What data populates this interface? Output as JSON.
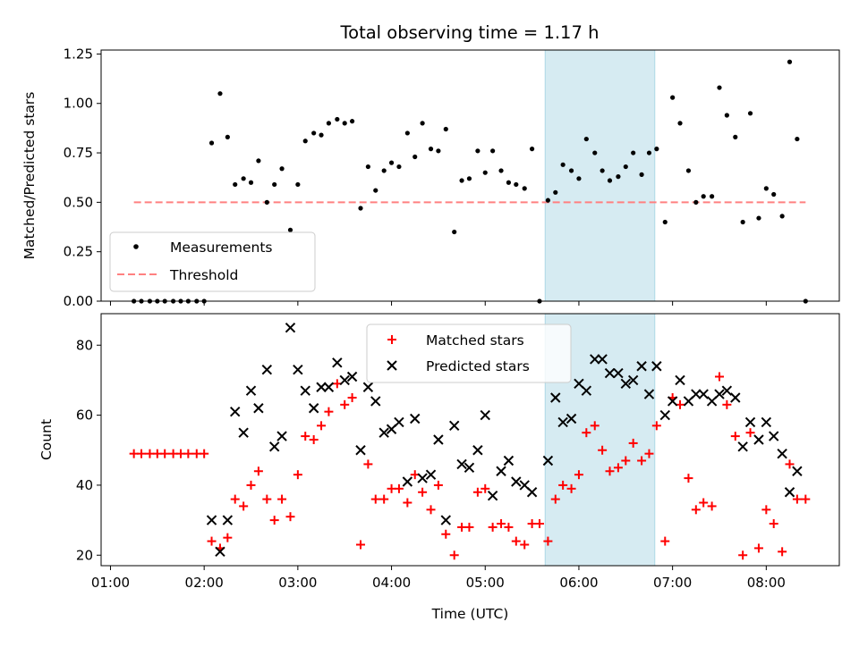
{
  "chart_data": [
    {
      "type": "scatter",
      "title": "Total observing time = 1.17 h",
      "ylabel": "Matched/Predicted stars",
      "xlim": [
        0.9,
        8.78
      ],
      "ylim": [
        0,
        1.27
      ],
      "yticks": [
        "0.00",
        "0.25",
        "0.50",
        "0.75",
        "1.00",
        "1.25"
      ],
      "highlight_span": [
        5.64,
        6.81
      ],
      "highlight_color": "#add8e6",
      "series": [
        {
          "name": "Measurements",
          "color": "#000000",
          "marker": "dot",
          "points": [
            [
              1.25,
              0
            ],
            [
              1.33,
              0
            ],
            [
              1.42,
              0
            ],
            [
              1.5,
              0
            ],
            [
              1.58,
              0
            ],
            [
              1.67,
              0
            ],
            [
              1.75,
              0
            ],
            [
              1.83,
              0
            ],
            [
              1.92,
              0
            ],
            [
              2.0,
              0
            ],
            [
              2.08,
              0.8
            ],
            [
              2.17,
              1.05
            ],
            [
              2.25,
              0.83
            ],
            [
              2.33,
              0.59
            ],
            [
              2.42,
              0.62
            ],
            [
              2.5,
              0.6
            ],
            [
              2.58,
              0.71
            ],
            [
              2.67,
              0.5
            ],
            [
              2.75,
              0.59
            ],
            [
              2.83,
              0.67
            ],
            [
              2.92,
              0.36
            ],
            [
              3.0,
              0.59
            ],
            [
              3.08,
              0.81
            ],
            [
              3.17,
              0.85
            ],
            [
              3.25,
              0.84
            ],
            [
              3.33,
              0.9
            ],
            [
              3.42,
              0.92
            ],
            [
              3.5,
              0.9
            ],
            [
              3.58,
              0.91
            ],
            [
              3.67,
              0.47
            ],
            [
              3.75,
              0.68
            ],
            [
              3.83,
              0.56
            ],
            [
              3.92,
              0.66
            ],
            [
              4.0,
              0.7
            ],
            [
              4.08,
              0.68
            ],
            [
              4.17,
              0.85
            ],
            [
              4.25,
              0.73
            ],
            [
              4.33,
              0.9
            ],
            [
              4.42,
              0.77
            ],
            [
              4.5,
              0.76
            ],
            [
              4.58,
              0.87
            ],
            [
              4.67,
              0.35
            ],
            [
              4.75,
              0.61
            ],
            [
              4.83,
              0.62
            ],
            [
              4.92,
              0.76
            ],
            [
              5.0,
              0.65
            ],
            [
              5.08,
              0.76
            ],
            [
              5.17,
              0.66
            ],
            [
              5.25,
              0.6
            ],
            [
              5.33,
              0.59
            ],
            [
              5.42,
              0.57
            ],
            [
              5.5,
              0.77
            ],
            [
              5.58,
              0.0
            ],
            [
              5.67,
              0.51
            ],
            [
              5.75,
              0.55
            ],
            [
              5.83,
              0.69
            ],
            [
              5.92,
              0.66
            ],
            [
              6.0,
              0.62
            ],
            [
              6.08,
              0.82
            ],
            [
              6.17,
              0.75
            ],
            [
              6.25,
              0.66
            ],
            [
              6.33,
              0.61
            ],
            [
              6.42,
              0.63
            ],
            [
              6.5,
              0.68
            ],
            [
              6.58,
              0.75
            ],
            [
              6.67,
              0.64
            ],
            [
              6.75,
              0.75
            ],
            [
              6.83,
              0.77
            ],
            [
              6.92,
              0.4
            ],
            [
              7.0,
              1.03
            ],
            [
              7.08,
              0.9
            ],
            [
              7.17,
              0.66
            ],
            [
              7.25,
              0.5
            ],
            [
              7.33,
              0.53
            ],
            [
              7.42,
              0.53
            ],
            [
              7.5,
              1.08
            ],
            [
              7.58,
              0.94
            ],
            [
              7.67,
              0.83
            ],
            [
              7.75,
              0.4
            ],
            [
              7.83,
              0.95
            ],
            [
              7.92,
              0.42
            ],
            [
              8.0,
              0.57
            ],
            [
              8.08,
              0.54
            ],
            [
              8.17,
              0.43
            ],
            [
              8.25,
              1.21
            ],
            [
              8.33,
              0.82
            ],
            [
              8.42,
              0.0
            ]
          ]
        },
        {
          "name": "Threshold",
          "color": "#ff8080",
          "style": "dashed",
          "points": [
            [
              1.25,
              0.5
            ],
            [
              8.42,
              0.5
            ]
          ]
        }
      ],
      "legend": "lower-left"
    },
    {
      "type": "scatter",
      "xlabel": "Time (UTC)",
      "ylabel": "Count",
      "xlim": [
        0.9,
        8.78
      ],
      "ylim": [
        17,
        89
      ],
      "xticks": [
        "01:00",
        "02:00",
        "03:00",
        "04:00",
        "05:00",
        "06:00",
        "07:00",
        "08:00"
      ],
      "yticks": [
        "20",
        "40",
        "60",
        "80"
      ],
      "highlight_span": [
        5.64,
        6.81
      ],
      "highlight_color": "#add8e6",
      "series": [
        {
          "name": "Matched stars",
          "color": "#ff0000",
          "marker": "plus",
          "points": [
            [
              1.25,
              49
            ],
            [
              1.33,
              49
            ],
            [
              1.42,
              49
            ],
            [
              1.5,
              49
            ],
            [
              1.58,
              49
            ],
            [
              1.67,
              49
            ],
            [
              1.75,
              49
            ],
            [
              1.83,
              49
            ],
            [
              1.92,
              49
            ],
            [
              2.0,
              49
            ],
            [
              2.08,
              24
            ],
            [
              2.17,
              22
            ],
            [
              2.25,
              25
            ],
            [
              2.33,
              36
            ],
            [
              2.42,
              34
            ],
            [
              2.5,
              40
            ],
            [
              2.58,
              44
            ],
            [
              2.67,
              36
            ],
            [
              2.75,
              30
            ],
            [
              2.83,
              36
            ],
            [
              2.92,
              31
            ],
            [
              3.0,
              43
            ],
            [
              3.08,
              54
            ],
            [
              3.17,
              53
            ],
            [
              3.25,
              57
            ],
            [
              3.33,
              61
            ],
            [
              3.42,
              69
            ],
            [
              3.5,
              63
            ],
            [
              3.58,
              65
            ],
            [
              3.67,
              23
            ],
            [
              3.75,
              46
            ],
            [
              3.83,
              36
            ],
            [
              3.92,
              36
            ],
            [
              4.0,
              39
            ],
            [
              4.08,
              39
            ],
            [
              4.17,
              35
            ],
            [
              4.25,
              43
            ],
            [
              4.33,
              38
            ],
            [
              4.42,
              33
            ],
            [
              4.5,
              40
            ],
            [
              4.58,
              26
            ],
            [
              4.67,
              20
            ],
            [
              4.75,
              28
            ],
            [
              4.83,
              28
            ],
            [
              4.92,
              38
            ],
            [
              5.0,
              39
            ],
            [
              5.08,
              28
            ],
            [
              5.17,
              29
            ],
            [
              5.25,
              28
            ],
            [
              5.33,
              24
            ],
            [
              5.42,
              23
            ],
            [
              5.5,
              29
            ],
            [
              5.58,
              29
            ],
            [
              5.67,
              24
            ],
            [
              5.75,
              36
            ],
            [
              5.83,
              40
            ],
            [
              5.92,
              39
            ],
            [
              6.0,
              43
            ],
            [
              6.08,
              55
            ],
            [
              6.17,
              57
            ],
            [
              6.25,
              50
            ],
            [
              6.33,
              44
            ],
            [
              6.42,
              45
            ],
            [
              6.5,
              47
            ],
            [
              6.58,
              52
            ],
            [
              6.67,
              47
            ],
            [
              6.75,
              49
            ],
            [
              6.83,
              57
            ],
            [
              6.92,
              24
            ],
            [
              7.0,
              65
            ],
            [
              7.08,
              63
            ],
            [
              7.17,
              42
            ],
            [
              7.25,
              33
            ],
            [
              7.33,
              35
            ],
            [
              7.42,
              34
            ],
            [
              7.5,
              71
            ],
            [
              7.58,
              63
            ],
            [
              7.67,
              54
            ],
            [
              7.75,
              20
            ],
            [
              7.83,
              55
            ],
            [
              7.92,
              22
            ],
            [
              8.0,
              33
            ],
            [
              8.08,
              29
            ],
            [
              8.17,
              21
            ],
            [
              8.25,
              46
            ],
            [
              8.33,
              36
            ],
            [
              8.42,
              36
            ]
          ]
        },
        {
          "name": "Predicted stars",
          "color": "#000000",
          "marker": "x",
          "points": [
            [
              2.08,
              30
            ],
            [
              2.17,
              21
            ],
            [
              2.25,
              30
            ],
            [
              2.33,
              61
            ],
            [
              2.42,
              55
            ],
            [
              2.5,
              67
            ],
            [
              2.58,
              62
            ],
            [
              2.67,
              73
            ],
            [
              2.75,
              51
            ],
            [
              2.83,
              54
            ],
            [
              2.92,
              85
            ],
            [
              3.0,
              73
            ],
            [
              3.08,
              67
            ],
            [
              3.17,
              62
            ],
            [
              3.25,
              68
            ],
            [
              3.33,
              68
            ],
            [
              3.42,
              75
            ],
            [
              3.5,
              70
            ],
            [
              3.58,
              71
            ],
            [
              3.67,
              50
            ],
            [
              3.75,
              68
            ],
            [
              3.83,
              64
            ],
            [
              3.92,
              55
            ],
            [
              4.0,
              56
            ],
            [
              4.08,
              58
            ],
            [
              4.17,
              41
            ],
            [
              4.25,
              59
            ],
            [
              4.33,
              42
            ],
            [
              4.42,
              43
            ],
            [
              4.5,
              53
            ],
            [
              4.58,
              30
            ],
            [
              4.67,
              57
            ],
            [
              4.75,
              46
            ],
            [
              4.83,
              45
            ],
            [
              4.92,
              50
            ],
            [
              5.0,
              60
            ],
            [
              5.08,
              37
            ],
            [
              5.17,
              44
            ],
            [
              5.25,
              47
            ],
            [
              5.33,
              41
            ],
            [
              5.42,
              40
            ],
            [
              5.5,
              38
            ],
            [
              5.67,
              47
            ],
            [
              5.75,
              65
            ],
            [
              5.83,
              58
            ],
            [
              5.92,
              59
            ],
            [
              6.0,
              69
            ],
            [
              6.08,
              67
            ],
            [
              6.17,
              76
            ],
            [
              6.25,
              76
            ],
            [
              6.33,
              72
            ],
            [
              6.42,
              72
            ],
            [
              6.5,
              69
            ],
            [
              6.58,
              70
            ],
            [
              6.67,
              74
            ],
            [
              6.75,
              66
            ],
            [
              6.83,
              74
            ],
            [
              6.92,
              60
            ],
            [
              7.0,
              64
            ],
            [
              7.08,
              70
            ],
            [
              7.17,
              64
            ],
            [
              7.25,
              66
            ],
            [
              7.33,
              66
            ],
            [
              7.42,
              64
            ],
            [
              7.5,
              66
            ],
            [
              7.58,
              67
            ],
            [
              7.67,
              65
            ],
            [
              7.75,
              51
            ],
            [
              7.83,
              58
            ],
            [
              7.92,
              53
            ],
            [
              8.0,
              58
            ],
            [
              8.08,
              54
            ],
            [
              8.17,
              49
            ],
            [
              8.25,
              38
            ],
            [
              8.33,
              44
            ]
          ]
        }
      ],
      "legend": "upper-center"
    }
  ]
}
